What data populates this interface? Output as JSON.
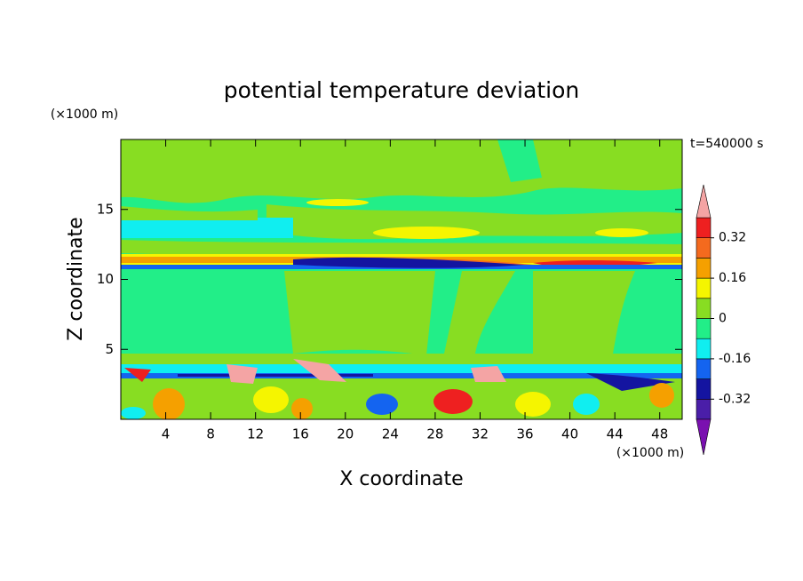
{
  "chart_data": {
    "type": "contour",
    "title": "potential temperature deviation",
    "x_label": "X coordinate",
    "y_label": "Z coordinate",
    "x_unit": "(×1000 m)",
    "y_unit": "(×1000 m)",
    "annotation": "t=540000 s",
    "xlim": [
      0,
      50
    ],
    "ylim": [
      0,
      20
    ],
    "xticks": [
      4,
      8,
      12,
      16,
      20,
      24,
      28,
      32,
      36,
      40,
      44,
      48
    ],
    "yticks": [
      5,
      10,
      15
    ],
    "colorbar": {
      "levels": [
        -0.4,
        -0.32,
        -0.24,
        -0.16,
        -0.08,
        0,
        0.08,
        0.16,
        0.24,
        0.32,
        0.4
      ],
      "colors": [
        "#7a10b0",
        "#4a1ea8",
        "#1414a0",
        "#1464f0",
        "#10eef0",
        "#22ee88",
        "#88dd22",
        "#f5f500",
        "#f5a000",
        "#f46a1e",
        "#ee2020",
        "#f4a4a4"
      ],
      "ticks": [
        -0.32,
        -0.16,
        0,
        0.16,
        0.32
      ]
    }
  }
}
